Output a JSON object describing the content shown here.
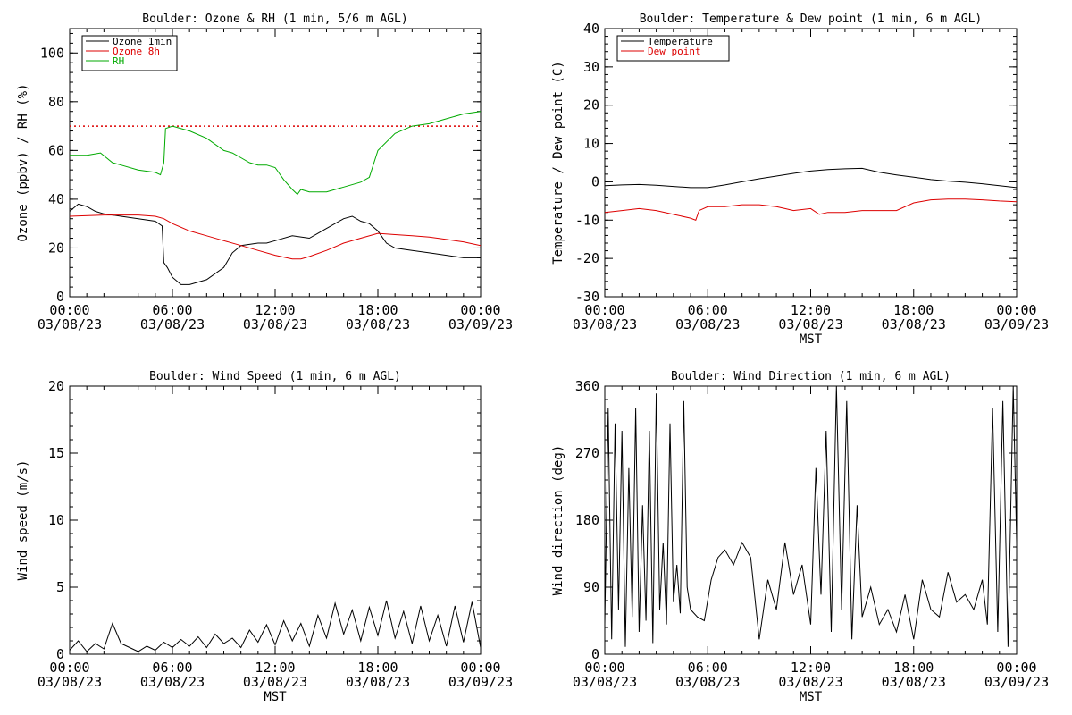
{
  "chart_data": [
    {
      "type": "line",
      "title": "Boulder: Ozone & RH (1 min, 5/6 m AGL)",
      "ylabel": "Ozone (ppbv) / RH (%)",
      "xlabel": "",
      "ylim": [
        0,
        110
      ],
      "yticks": [
        0,
        20,
        40,
        60,
        80,
        100
      ],
      "x_unit": "hours after 03/08/23 00:00 MST",
      "xticks": [
        {
          "time": "00:00",
          "date": "03/08/23"
        },
        {
          "time": "06:00",
          "date": "03/08/23"
        },
        {
          "time": "12:00",
          "date": "03/08/23"
        },
        {
          "time": "18:00",
          "date": "03/08/23"
        },
        {
          "time": "00:00",
          "date": "03/09/23"
        }
      ],
      "legend": "top-left",
      "reference_line": {
        "y": 70,
        "color": "#dd0000",
        "style": "dotted"
      },
      "series": [
        {
          "name": "Ozone 1min",
          "color": "#000000",
          "x": [
            0,
            0.5,
            1,
            1.5,
            2,
            3,
            4,
            5,
            5.4,
            5.5,
            5.7,
            6,
            6.5,
            7,
            8,
            9,
            9.5,
            10,
            11,
            11.5,
            12,
            13,
            14,
            14.5,
            15,
            16,
            16.5,
            17,
            17.5,
            18,
            18.5,
            19,
            20,
            21,
            22,
            23,
            24
          ],
          "y": [
            35,
            38,
            37,
            35,
            34,
            33,
            32,
            31,
            29,
            14,
            12,
            8,
            5,
            5,
            7,
            12,
            18,
            21,
            22,
            22,
            23,
            25,
            24,
            26,
            28,
            32,
            33,
            31,
            30,
            27,
            22,
            20,
            19,
            18,
            17,
            16,
            16
          ]
        },
        {
          "name": "Ozone 8h",
          "color": "#dd0000",
          "x": [
            0,
            2,
            4,
            5,
            5.5,
            6,
            7,
            8,
            9,
            10,
            11,
            12,
            13,
            13.5,
            14,
            15,
            16,
            17,
            18,
            19,
            20,
            21,
            22,
            23,
            24
          ],
          "y": [
            33,
            33.5,
            33.5,
            33,
            32,
            30,
            27,
            25,
            23,
            21,
            19,
            17,
            15.5,
            15.5,
            16.5,
            19,
            22,
            24,
            26,
            25.5,
            25,
            24.5,
            23.5,
            22.5,
            21
          ]
        },
        {
          "name": "RH",
          "color": "#00aa00",
          "x": [
            0,
            1,
            1.8,
            2.5,
            3,
            4,
            5,
            5.3,
            5.5,
            5.6,
            6,
            7,
            8,
            9,
            9.5,
            10,
            10.5,
            11,
            11.5,
            12,
            12.5,
            13,
            13.3,
            13.5,
            14,
            15,
            16,
            17,
            17.5,
            18,
            19,
            20,
            21,
            22,
            23,
            24
          ],
          "y": [
            58,
            58,
            59,
            55,
            54,
            52,
            51,
            50,
            55,
            69,
            70,
            68,
            65,
            60,
            59,
            57,
            55,
            54,
            54,
            53,
            48,
            44,
            42,
            44,
            43,
            43,
            45,
            47,
            49,
            60,
            67,
            70,
            71,
            73,
            75,
            76
          ]
        }
      ]
    },
    {
      "type": "line",
      "title": "Boulder: Temperature & Dew point (1 min, 6 m AGL)",
      "ylabel": "Temperature / Dew point (C)",
      "xlabel": "MST",
      "ylim": [
        -30,
        40
      ],
      "yticks": [
        -30,
        -20,
        -10,
        0,
        10,
        20,
        30,
        40
      ],
      "x_unit": "hours after 03/08/23 00:00 MST",
      "xticks": [
        {
          "time": "00:00",
          "date": "03/08/23"
        },
        {
          "time": "06:00",
          "date": "03/08/23"
        },
        {
          "time": "12:00",
          "date": "03/08/23"
        },
        {
          "time": "18:00",
          "date": "03/08/23"
        },
        {
          "time": "00:00",
          "date": "03/09/23"
        }
      ],
      "legend": "top-left",
      "series": [
        {
          "name": "Temperature",
          "color": "#000000",
          "x": [
            0,
            1,
            2,
            3,
            4,
            5,
            6,
            7,
            8,
            9,
            10,
            11,
            12,
            13,
            14,
            15,
            16,
            17,
            18,
            19,
            20,
            21,
            22,
            23,
            24
          ],
          "y": [
            -1,
            -0.8,
            -0.7,
            -0.9,
            -1.2,
            -1.5,
            -1.5,
            -0.8,
            0,
            0.8,
            1.5,
            2.2,
            2.8,
            3.2,
            3.4,
            3.5,
            2.5,
            1.8,
            1.2,
            0.6,
            0.2,
            -0.1,
            -0.5,
            -1,
            -1.5
          ]
        },
        {
          "name": "Dew point",
          "color": "#dd0000",
          "x": [
            0,
            1,
            2,
            3,
            4,
            5,
            5.3,
            5.5,
            6,
            7,
            8,
            9,
            10,
            10.5,
            11,
            12,
            12.5,
            13,
            14,
            15,
            16,
            17,
            18,
            19,
            20,
            21,
            22,
            23,
            24
          ],
          "y": [
            -8,
            -7.5,
            -7,
            -7.5,
            -8.5,
            -9.5,
            -10,
            -7.5,
            -6.5,
            -6.5,
            -6,
            -6,
            -6.5,
            -7,
            -7.5,
            -7,
            -8.5,
            -8,
            -8,
            -7.5,
            -7.5,
            -7.5,
            -5.5,
            -4.7,
            -4.5,
            -4.5,
            -4.7,
            -5,
            -5.2
          ]
        }
      ]
    },
    {
      "type": "line",
      "title": "Boulder: Wind Speed (1 min, 6 m AGL)",
      "ylabel": "Wind speed (m/s)",
      "xlabel": "MST",
      "ylim": [
        0,
        20
      ],
      "yticks": [
        0,
        5,
        10,
        15,
        20
      ],
      "x_unit": "hours after 03/08/23 00:00 MST",
      "xticks": [
        {
          "time": "00:00",
          "date": "03/08/23"
        },
        {
          "time": "06:00",
          "date": "03/08/23"
        },
        {
          "time": "12:00",
          "date": "03/08/23"
        },
        {
          "time": "18:00",
          "date": "03/08/23"
        },
        {
          "time": "00:00",
          "date": "03/09/23"
        }
      ],
      "series": [
        {
          "color": "#000000",
          "x": [
            0,
            0.5,
            1,
            1.5,
            2,
            2.5,
            3,
            3.5,
            4,
            4.5,
            5,
            5.5,
            6,
            6.5,
            7,
            7.5,
            8,
            8.5,
            9,
            9.5,
            10,
            10.5,
            11,
            11.5,
            12,
            12.5,
            13,
            13.5,
            14,
            14.5,
            15,
            15.5,
            16,
            16.5,
            17,
            17.5,
            18,
            18.5,
            19,
            19.5,
            20,
            20.5,
            21,
            21.5,
            22,
            22.5,
            23,
            23.5,
            24
          ],
          "y": [
            0.3,
            1.0,
            0.2,
            0.8,
            0.4,
            2.3,
            0.8,
            0.5,
            0.2,
            0.6,
            0.3,
            0.9,
            0.5,
            1.1,
            0.6,
            1.3,
            0.5,
            1.5,
            0.8,
            1.2,
            0.5,
            1.8,
            0.9,
            2.2,
            0.7,
            2.5,
            1.0,
            2.3,
            0.6,
            2.9,
            1.2,
            3.8,
            1.5,
            3.3,
            1.0,
            3.5,
            1.4,
            4.0,
            1.2,
            3.2,
            0.8,
            3.6,
            1.0,
            2.9,
            0.6,
            3.6,
            0.9,
            3.9,
            0.5
          ]
        }
      ]
    },
    {
      "type": "line",
      "title": "Boulder: Wind Direction (1 min, 6 m AGL)",
      "ylabel": "Wind direction (deg)",
      "xlabel": "MST",
      "ylim": [
        0,
        360
      ],
      "yticks": [
        0,
        90,
        180,
        270,
        360
      ],
      "x_unit": "hours after 03/08/23 00:00 MST",
      "xticks": [
        {
          "time": "00:00",
          "date": "03/08/23"
        },
        {
          "time": "06:00",
          "date": "03/08/23"
        },
        {
          "time": "12:00",
          "date": "03/08/23"
        },
        {
          "time": "18:00",
          "date": "03/08/23"
        },
        {
          "time": "00:00",
          "date": "03/09/23"
        }
      ],
      "series": [
        {
          "color": "#000000",
          "x": [
            0,
            0.2,
            0.4,
            0.6,
            0.8,
            1.0,
            1.2,
            1.4,
            1.6,
            1.8,
            2.0,
            2.2,
            2.4,
            2.6,
            2.8,
            3.0,
            3.2,
            3.4,
            3.6,
            3.8,
            4.0,
            4.2,
            4.4,
            4.6,
            4.8,
            5.0,
            5.4,
            5.8,
            6.2,
            6.6,
            7.0,
            7.5,
            8.0,
            8.5,
            9.0,
            9.5,
            10.0,
            10.5,
            11.0,
            11.5,
            12.0,
            12.3,
            12.6,
            12.9,
            13.2,
            13.5,
            13.8,
            14.1,
            14.4,
            14.7,
            15.0,
            15.5,
            16.0,
            16.5,
            17.0,
            17.5,
            18.0,
            18.5,
            19.0,
            19.5,
            20.0,
            20.5,
            21.0,
            21.5,
            22.0,
            22.3,
            22.6,
            22.9,
            23.2,
            23.5,
            23.8,
            24.0
          ],
          "y": [
            40,
            330,
            20,
            310,
            60,
            300,
            10,
            250,
            50,
            330,
            30,
            200,
            45,
            300,
            15,
            350,
            60,
            150,
            40,
            310,
            70,
            120,
            55,
            340,
            90,
            60,
            50,
            45,
            100,
            130,
            140,
            120,
            150,
            130,
            20,
            100,
            60,
            150,
            80,
            120,
            40,
            250,
            80,
            300,
            30,
            360,
            60,
            340,
            20,
            200,
            50,
            90,
            40,
            60,
            30,
            80,
            20,
            100,
            60,
            50,
            110,
            70,
            80,
            60,
            100,
            40,
            330,
            30,
            340,
            10,
            360,
            150
          ]
        }
      ]
    }
  ]
}
